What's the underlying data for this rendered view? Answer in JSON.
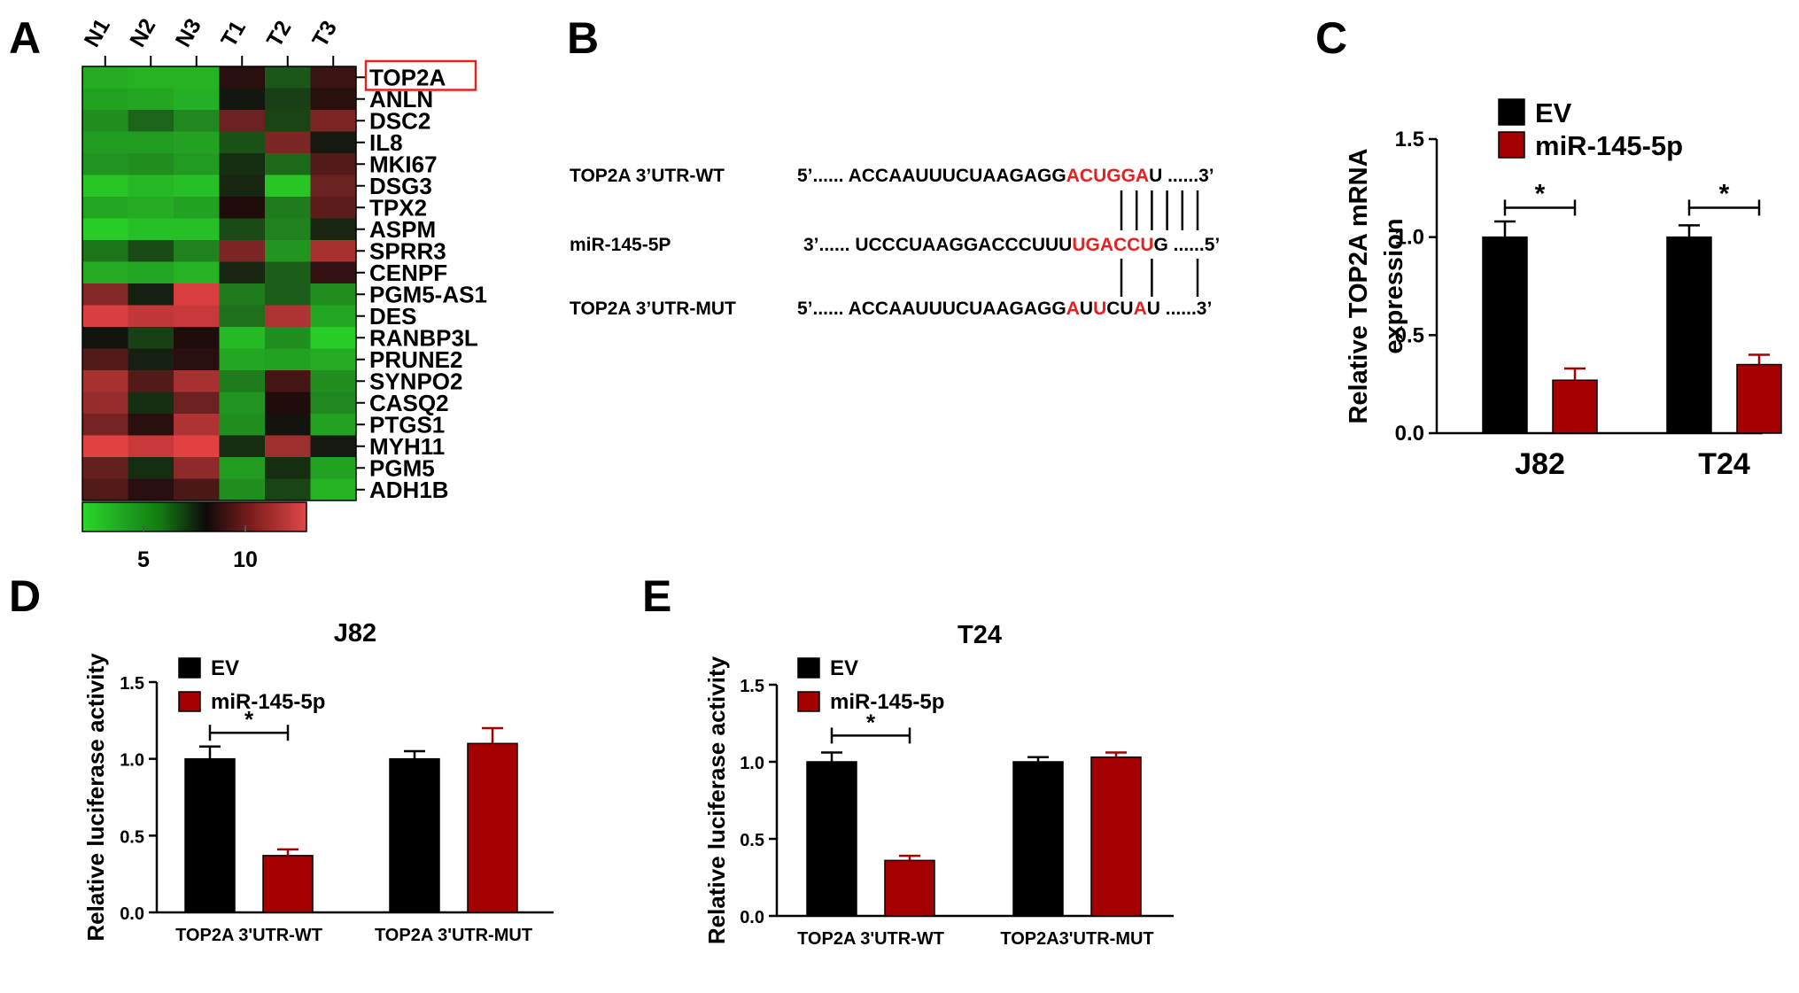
{
  "panels": {
    "A": "A",
    "B": "B",
    "C": "C",
    "D": "D",
    "E": "E"
  },
  "colors": {
    "ev": "#000000",
    "mir": "#a50000",
    "highlight": "#e8201f",
    "box": "#e8201f"
  },
  "chart_data": [
    {
      "panel": "A",
      "type": "heatmap",
      "columns": [
        "N1",
        "N2",
        "N3",
        "T1",
        "T2",
        "T3"
      ],
      "rows": [
        "TOP2A",
        "ANLN",
        "DSC2",
        "IL8",
        "MKI67",
        "DSG3",
        "TPX2",
        "ASPM",
        "SPRR3",
        "CENPF",
        "PGM5-AS1",
        "DES",
        "RANBP3L",
        "PRUNE2",
        "SYNPO2",
        "CASQ2",
        "PTGS1",
        "MYH11",
        "PGM5",
        "ADH1B"
      ],
      "highlighted_row": "TOP2A",
      "values": [
        [
          3.2,
          3.0,
          3.0,
          8.6,
          6.0,
          9.0
        ],
        [
          3.6,
          3.4,
          3.1,
          8.1,
          6.8,
          8.6
        ],
        [
          4.2,
          5.6,
          4.4,
          10.2,
          6.6,
          10.6
        ],
        [
          3.8,
          3.8,
          3.6,
          6.2,
          10.6,
          8.0
        ],
        [
          4.0,
          4.2,
          3.8,
          7.4,
          5.4,
          9.6
        ],
        [
          2.4,
          2.8,
          2.6,
          7.6,
          2.4,
          10.2
        ],
        [
          3.4,
          3.2,
          3.6,
          8.4,
          4.8,
          9.8
        ],
        [
          2.2,
          2.6,
          2.6,
          6.4,
          4.6,
          7.6
        ],
        [
          5.0,
          6.4,
          4.6,
          10.6,
          4.0,
          11.6
        ],
        [
          3.2,
          3.4,
          3.0,
          7.6,
          5.8,
          8.8
        ],
        [
          10.8,
          7.8,
          12.8,
          4.8,
          5.8,
          4.2
        ],
        [
          12.8,
          12.2,
          12.4,
          5.2,
          11.8,
          3.4
        ],
        [
          8.2,
          6.8,
          8.4,
          2.8,
          4.2,
          2.2
        ],
        [
          9.6,
          7.8,
          8.6,
          3.4,
          3.6,
          3.2
        ],
        [
          11.6,
          9.6,
          11.6,
          4.8,
          9.2,
          4.2
        ],
        [
          11.2,
          7.4,
          10.2,
          4.0,
          8.4,
          4.4
        ],
        [
          10.4,
          8.6,
          11.8,
          4.2,
          8.2,
          3.6
        ],
        [
          13.0,
          12.4,
          13.0,
          7.4,
          11.4,
          8.0
        ],
        [
          10.0,
          7.4,
          11.0,
          3.8,
          7.4,
          3.6
        ],
        [
          9.6,
          8.6,
          9.4,
          4.2,
          6.6,
          3.0
        ]
      ],
      "colorbar": {
        "range": [
          2,
          13
        ],
        "tick_labels": [
          "5",
          "10"
        ],
        "ticks": [
          5,
          10
        ]
      }
    },
    {
      "panel": "B",
      "type": "table",
      "rows": [
        {
          "label": "TOP2A 3’UTR-WT",
          "prefix": "5’...... ACCAAUUUCUAAGAGG",
          "seed": "ACUGGA",
          "suffix": "U ......3’"
        },
        {
          "label": "miR-145-5P",
          "prefix": "3’...... UCCCUAAGGACCCUUU",
          "seed": "UGACCU",
          "suffix": "G ......5’"
        },
        {
          "label": "TOP2A 3’UTR-MUT",
          "prefix": "5’...... ACCAAUUUCUAAGAGG",
          "seed_parts": [
            {
              "text": "A",
              "red": true
            },
            {
              "text": "U",
              "red": false
            },
            {
              "text": "U",
              "red": true
            },
            {
              "text": "CU",
              "red": false
            },
            {
              "text": "A",
              "red": true
            }
          ],
          "suffix": "U ......3’"
        }
      ]
    },
    {
      "panel": "C",
      "type": "bar",
      "categories": [
        "J82",
        "T24"
      ],
      "series": [
        {
          "name": "EV",
          "values": [
            1.0,
            1.0
          ],
          "errors": [
            0.08,
            0.06
          ]
        },
        {
          "name": "miR-145-5p",
          "values": [
            0.27,
            0.35
          ],
          "errors": [
            0.06,
            0.05
          ]
        }
      ],
      "ylabel": [
        "Relative TOP2A mRNA",
        "expression"
      ],
      "ylim": [
        0,
        1.5
      ],
      "yticks": [
        "0.0",
        "0.5",
        "1.0",
        "1.5"
      ],
      "significance": "*",
      "legend": "top"
    },
    {
      "panel": "D",
      "type": "bar",
      "title": "J82",
      "categories": [
        "TOP2A 3'UTR-WT",
        "TOP2A 3'UTR-MUT"
      ],
      "series": [
        {
          "name": "EV",
          "values": [
            1.0,
            1.0
          ],
          "errors": [
            0.08,
            0.05
          ]
        },
        {
          "name": "miR-145-5p",
          "values": [
            0.37,
            1.1
          ],
          "errors": [
            0.04,
            0.1
          ]
        }
      ],
      "ylabel": "Relative luciferase activity",
      "ylim": [
        0,
        1.5
      ],
      "yticks": [
        "0.0",
        "0.5",
        "1.0",
        "1.5"
      ],
      "significance": "*",
      "legend": "top-left"
    },
    {
      "panel": "E",
      "type": "bar",
      "title": "T24",
      "categories": [
        "TOP2A 3'UTR-WT",
        "TOP2A3'UTR-MUT"
      ],
      "series": [
        {
          "name": "EV",
          "values": [
            1.0,
            1.0
          ],
          "errors": [
            0.06,
            0.03
          ]
        },
        {
          "name": "miR-145-5p",
          "values": [
            0.36,
            1.03
          ],
          "errors": [
            0.03,
            0.03
          ]
        }
      ],
      "ylabel": "Relative luciferase activity",
      "ylim": [
        0,
        1.5
      ],
      "yticks": [
        "0.0",
        "0.5",
        "1.0",
        "1.5"
      ],
      "significance": "*",
      "legend": "top-left"
    }
  ]
}
